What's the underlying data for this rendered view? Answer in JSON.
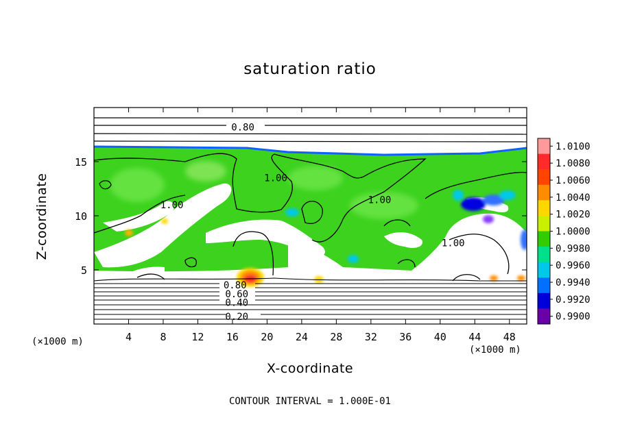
{
  "chart_data": {
    "type": "heatmap",
    "title": "saturation ratio",
    "xlabel": "X-coordinate",
    "ylabel": "Z-coordinate",
    "x_unit_left": "(×1000 m)",
    "x_unit_right": "(×1000 m)",
    "footer": "CONTOUR INTERVAL = 1.000E-01",
    "xlim": [
      0,
      50
    ],
    "ylim": [
      0,
      20
    ],
    "x_ticks": [
      4,
      8,
      12,
      16,
      20,
      24,
      28,
      32,
      36,
      40,
      44,
      48
    ],
    "y_ticks": [
      5,
      10,
      15
    ],
    "colorbar": {
      "levels": [
        "1.0100",
        "1.0080",
        "1.0060",
        "1.0040",
        "1.0020",
        "1.0000",
        "0.9980",
        "0.9960",
        "0.9940",
        "0.9920",
        "0.9900"
      ],
      "colors": [
        "#ff9a9a",
        "#ff2a2a",
        "#ff4400",
        "#ff8c00",
        "#ffd700",
        "#c8f000",
        "#33cc00",
        "#00e08a",
        "#00c8e8",
        "#0070ff",
        "#0000d8",
        "#6a00a8"
      ]
    },
    "contour_labels": [
      {
        "text": "0.80",
        "x": 17.2,
        "y": 18.2
      },
      {
        "text": "1.00",
        "x": 21,
        "y": 13.5
      },
      {
        "text": "1.00",
        "x": 33,
        "y": 11.5
      },
      {
        "text": "1.00",
        "x": 9,
        "y": 11
      },
      {
        "text": "1.00",
        "x": 41.5,
        "y": 7.5
      },
      {
        "text": "0.80",
        "x": 16.3,
        "y": 3.6
      },
      {
        "text": "0.60",
        "x": 16.5,
        "y": 2.8
      },
      {
        "text": "0.40",
        "x": 16.5,
        "y": 2.0
      },
      {
        "text": "0.20",
        "x": 16.5,
        "y": 0.7
      }
    ],
    "field": {
      "moist_top_z": 16.2,
      "dry_boundary_z": 3.8,
      "saturated_value": "1.0000",
      "dry_aloft_contour": "0.80"
    }
  }
}
